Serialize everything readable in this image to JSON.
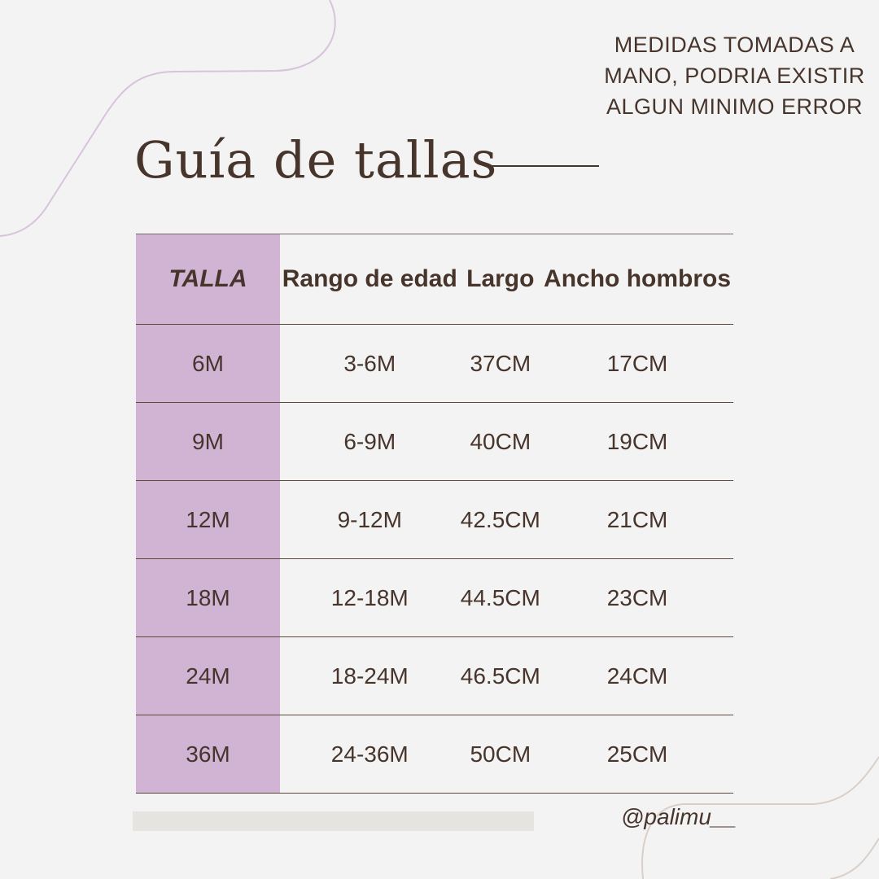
{
  "note": "MEDIDAS TOMADAS A MANO, PODRIA EXISTIR ALGUN MINIMO ERROR",
  "title": "Guía de tallas",
  "table": {
    "headers": [
      "TALLA",
      "Rango de edad",
      "Largo",
      "Ancho hombros"
    ],
    "rows": [
      [
        "6M",
        "3-6M",
        "37CM",
        "17CM"
      ],
      [
        "9M",
        "6-9M",
        "40CM",
        "19CM"
      ],
      [
        "12M",
        "9-12M",
        "42.5CM",
        "21CM"
      ],
      [
        "18M",
        "12-18M",
        "44.5CM",
        "23CM"
      ],
      [
        "24M",
        "18-24M",
        "46.5CM",
        "24CM"
      ],
      [
        "36M",
        "24-36M",
        "50CM",
        "25CM"
      ]
    ]
  },
  "handle": "@palimu__",
  "colors": {
    "accent": "#d1b3d4",
    "text": "#47352c",
    "background": "#f3f3f3"
  }
}
